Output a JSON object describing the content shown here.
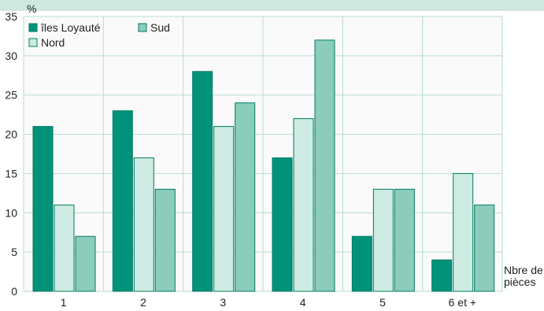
{
  "chart_data": {
    "type": "bar",
    "ylabel": "%",
    "xlabel": [
      "Nbre de",
      "pièces"
    ],
    "categories": [
      "1",
      "2",
      "3",
      "4",
      "5",
      "6 et +"
    ],
    "ylim": [
      0,
      35
    ],
    "yticks": [
      0,
      5,
      10,
      15,
      20,
      25,
      30,
      35
    ],
    "grid": true,
    "legend_position": "top-left",
    "series": [
      {
        "name": "îles Loyauté",
        "color": "#00937A",
        "values": [
          21,
          23,
          28,
          17,
          7,
          4
        ]
      },
      {
        "name": "Nord",
        "color": "#CDEBE2",
        "values": [
          11,
          17,
          21,
          22,
          13,
          15
        ]
      },
      {
        "name": "Sud",
        "color": "#8CCCBA",
        "values": [
          7,
          13,
          24,
          32,
          13,
          11
        ]
      }
    ],
    "colors": {
      "plot_background": "#FAFAFA",
      "grid": "#B8DDD0",
      "bar_edge": "#007A63",
      "top_band": "#CFE8DF"
    }
  }
}
